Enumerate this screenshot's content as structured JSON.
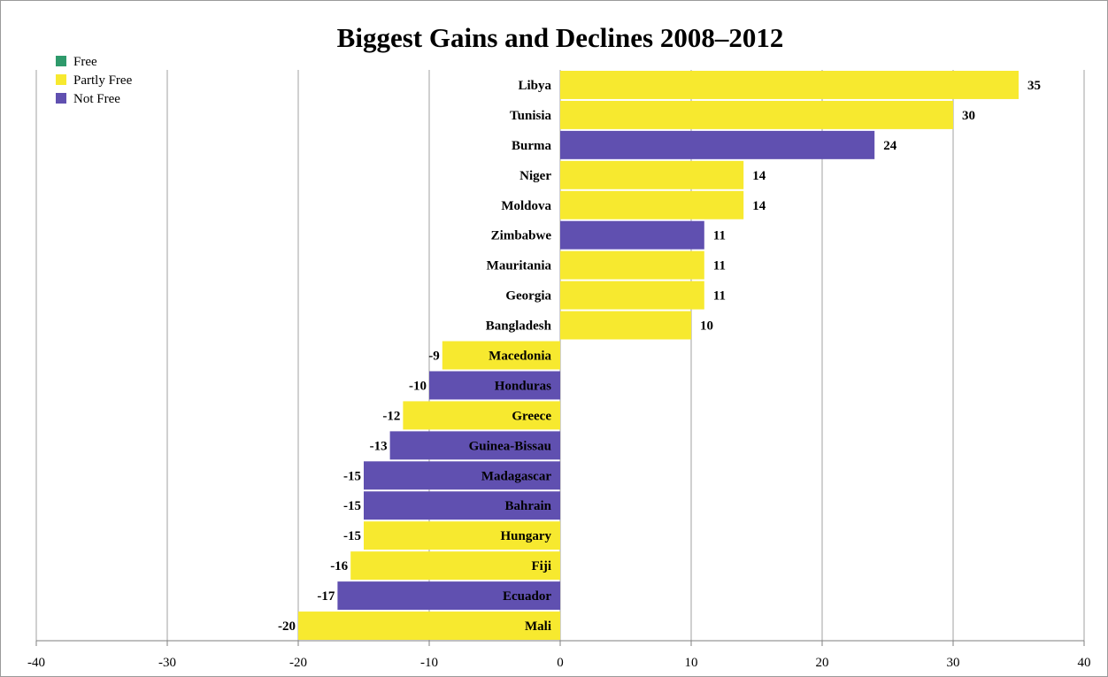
{
  "chart_data": {
    "type": "bar",
    "orientation": "horizontal",
    "title": "Biggest Gains and Declines 2008–2012",
    "xlabel": "",
    "ylabel": "",
    "xlim": [
      -40,
      40
    ],
    "xticks": [
      -40,
      -30,
      -20,
      -10,
      0,
      10,
      20,
      30,
      40
    ],
    "grid": true,
    "legend_position": "top-left",
    "legend": [
      {
        "name": "Free",
        "color": "#2e9a6b"
      },
      {
        "name": "Partly Free",
        "color": "#f7e92f"
      },
      {
        "name": "Not Free",
        "color": "#6050b0"
      }
    ],
    "categories": [
      "Libya",
      "Tunisia",
      "Burma",
      "Niger",
      "Moldova",
      "Zimbabwe",
      "Mauritania",
      "Georgia",
      "Bangladesh",
      "Macedonia",
      "Honduras",
      "Greece",
      "Guinea-Bissau",
      "Madagascar",
      "Bahrain",
      "Hungary",
      "Fiji",
      "Ecuador",
      "Mali"
    ],
    "values": [
      35,
      30,
      24,
      14,
      14,
      11,
      11,
      11,
      10,
      -9,
      -10,
      -12,
      -13,
      -15,
      -15,
      -15,
      -16,
      -17,
      -20
    ],
    "status": [
      "Partly Free",
      "Partly Free",
      "Not Free",
      "Partly Free",
      "Partly Free",
      "Not Free",
      "Partly Free",
      "Partly Free",
      "Partly Free",
      "Partly Free",
      "Not Free",
      "Partly Free",
      "Not Free",
      "Not Free",
      "Not Free",
      "Partly Free",
      "Partly Free",
      "Not Free",
      "Partly Free"
    ]
  }
}
